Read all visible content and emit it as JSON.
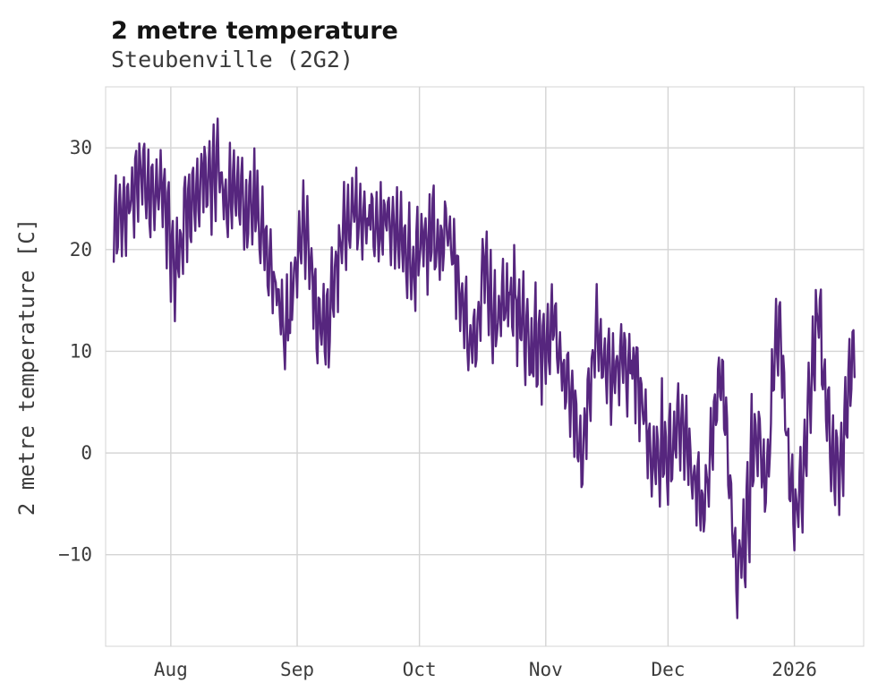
{
  "colors": {
    "background": "#ffffff",
    "line": "#56267e",
    "grid": "#d4d4d4",
    "plot_border": "#d4d4d4",
    "title_text": "#141414",
    "subtitle_text": "#3a3a3a",
    "tick_text": "#3c3c3c"
  },
  "chart_data": {
    "type": "line",
    "title": "2 metre temperature",
    "subtitle": "Steubenville (2G2)",
    "xlabel": "",
    "ylabel": "2 metre temperature [C]",
    "legend": false,
    "grid": true,
    "x_unit": "days from first plotted sample; day 14 = Aug 1",
    "xlim": [
      -2,
      184
    ],
    "ylim": [
      -19,
      36
    ],
    "y_ticks": [
      -10,
      0,
      10,
      20,
      30
    ],
    "x_ticks": [
      {
        "pos": 14,
        "label": "Aug"
      },
      {
        "pos": 45,
        "label": "Sep"
      },
      {
        "pos": 75,
        "label": "Oct"
      },
      {
        "pos": 106,
        "label": "Nov"
      },
      {
        "pos": 136,
        "label": "Dec"
      },
      {
        "pos": 167,
        "label": "2026"
      }
    ],
    "diurnal_amplitude": 3.5,
    "noise_amplitude": 2.2,
    "seed": 11,
    "series": [
      {
        "name": "2 metre temperature",
        "color": "#56267e",
        "sampling": "estimated daily mean temperature in C, mid-July through mid-January; plot shows sub-daily values with roughly +/-3.5 C diurnal swing and noise; observed extremes approx max 33 (early-mid Aug) and min -16.5 (mid-late Dec)",
        "daily_mean": [
          22,
          23,
          24,
          23,
          25,
          26,
          27,
          28,
          27,
          25,
          26,
          27,
          25,
          23,
          20,
          18,
          19,
          22,
          24,
          25,
          26,
          27,
          28,
          27,
          26,
          28,
          27,
          26,
          25,
          26,
          27,
          26,
          24,
          23,
          24,
          25,
          23,
          21,
          19,
          17,
          16,
          14,
          13,
          15,
          17,
          19,
          21,
          22,
          20,
          17,
          14,
          12,
          13,
          15,
          17,
          19,
          21,
          22,
          23,
          24,
          23,
          24,
          23,
          24,
          23,
          22,
          23,
          24,
          23,
          22,
          21,
          20,
          19,
          18,
          19,
          20,
          21,
          20,
          22,
          21,
          20,
          21,
          22,
          20,
          18,
          16,
          14,
          12,
          10,
          12,
          15,
          20,
          17,
          14,
          13,
          14,
          15,
          16,
          15,
          14,
          13,
          12,
          11,
          10,
          9,
          10,
          9,
          11,
          13,
          10,
          8,
          7,
          6,
          4,
          1,
          0,
          3,
          7,
          11,
          13,
          10,
          8,
          6,
          7,
          8,
          9,
          8,
          9,
          8,
          6,
          4,
          2,
          0,
          -1,
          0,
          1,
          0,
          -1,
          1,
          3,
          2,
          0,
          -2,
          -4,
          -6,
          -5,
          -3,
          2,
          7,
          9,
          4,
          -2,
          -8,
          -12,
          -11,
          -8,
          -4,
          0,
          2,
          -1,
          -3,
          2,
          8,
          12,
          9,
          3,
          -3,
          -7,
          -6,
          -3,
          1,
          6,
          11,
          13,
          9,
          5,
          1,
          0,
          -1,
          0,
          5,
          9
        ]
      }
    ]
  }
}
